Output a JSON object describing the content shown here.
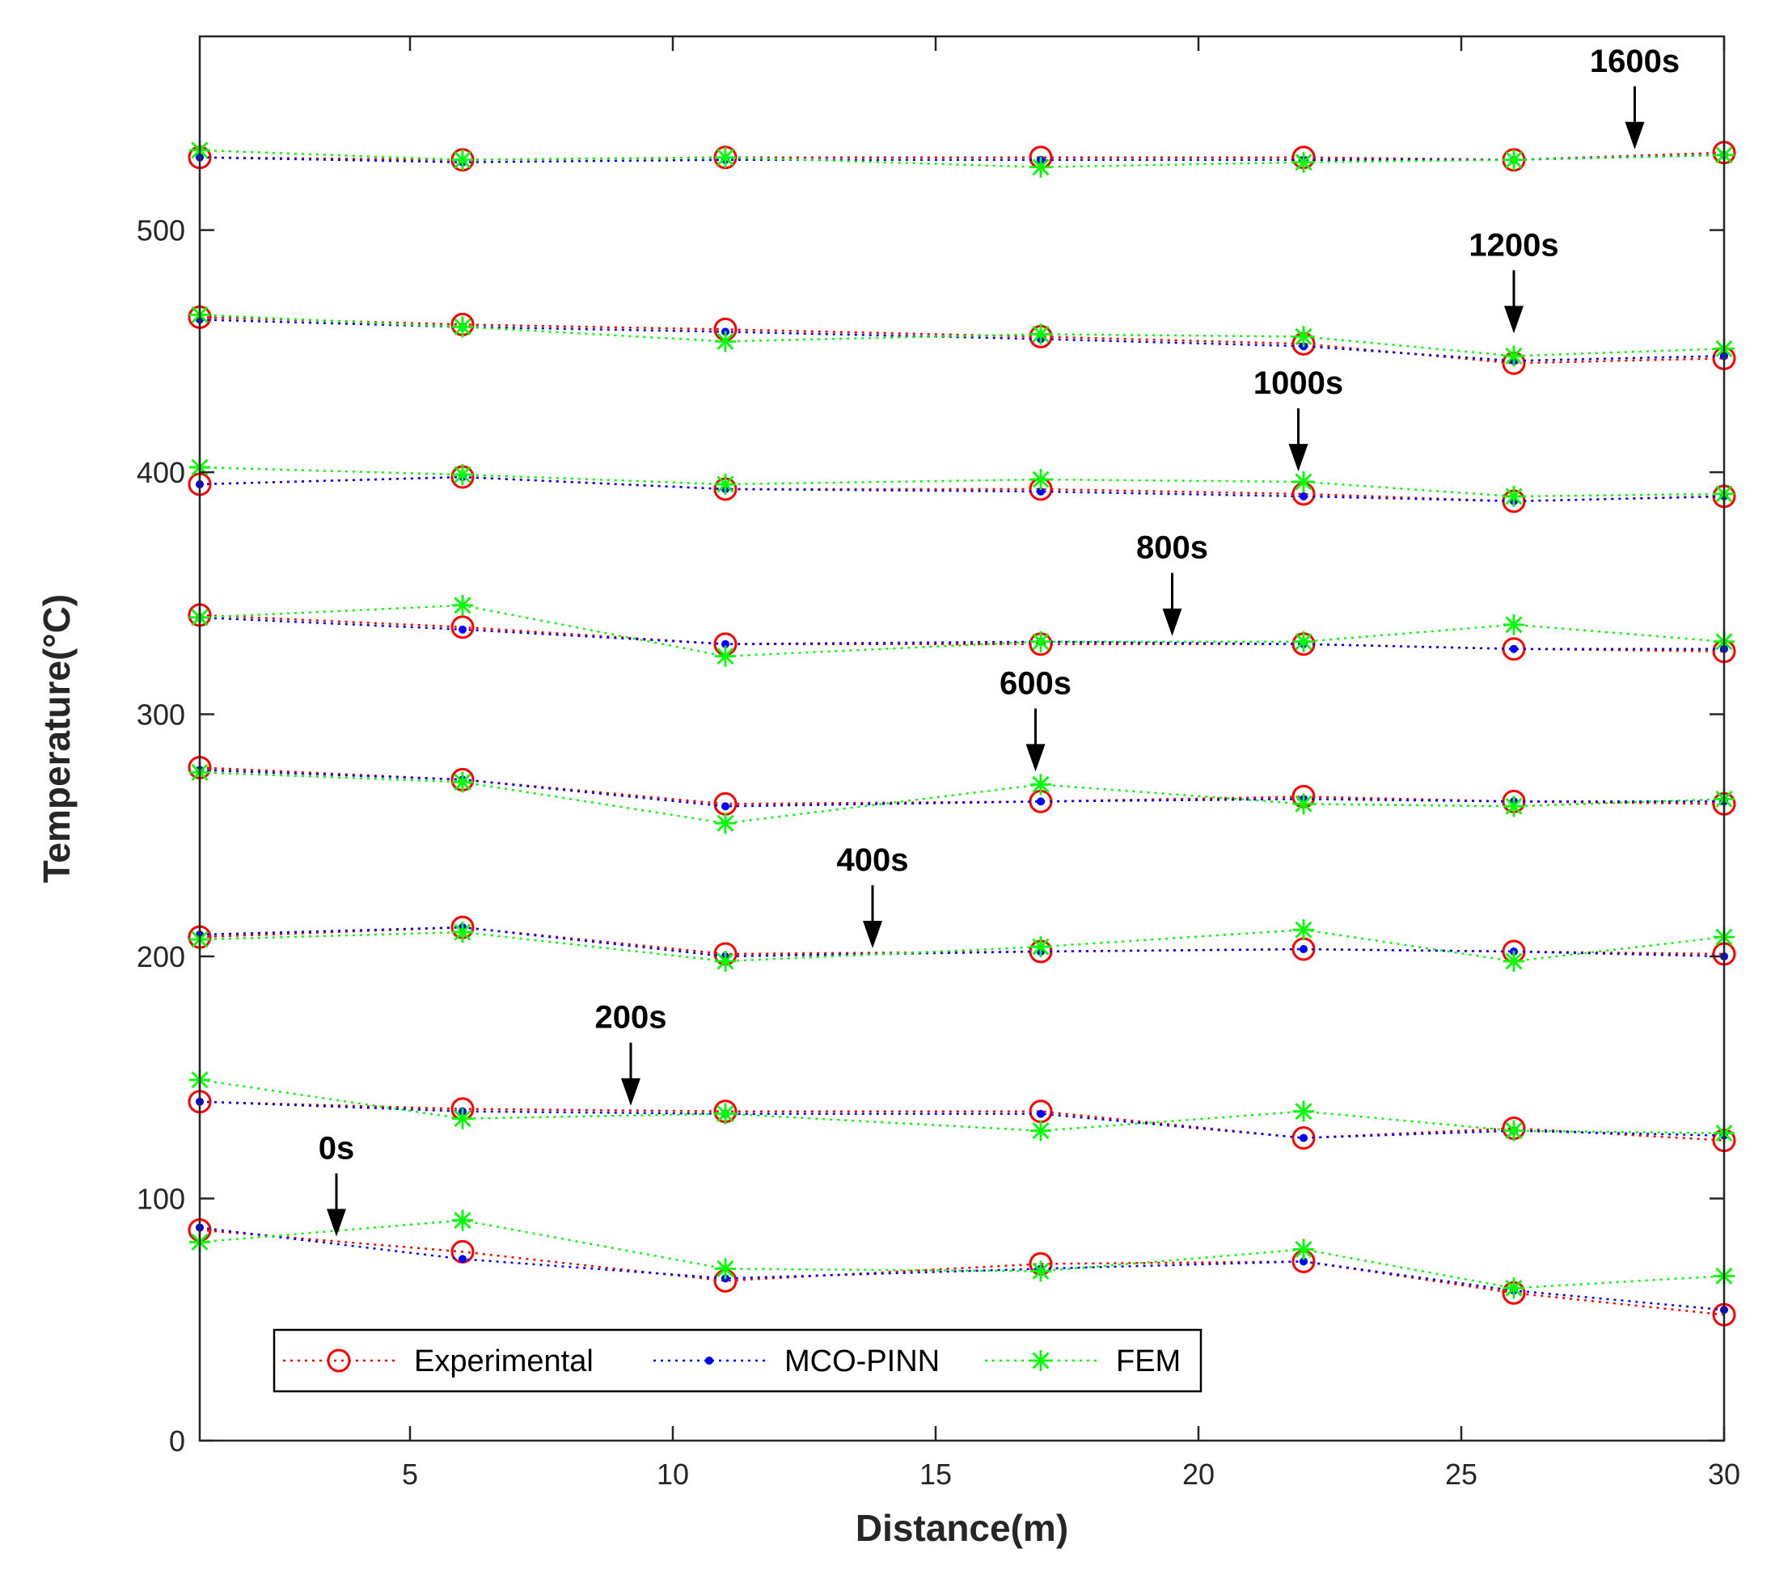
{
  "chart_data": {
    "type": "line",
    "title": "",
    "xlabel": "Distance(m)",
    "ylabel": "Temperature(°C)",
    "xlim": [
      1,
      30
    ],
    "ylim": [
      0,
      580
    ],
    "xticks": [
      5,
      10,
      15,
      20,
      25,
      30
    ],
    "yticks": [
      0,
      100,
      200,
      300,
      400,
      500
    ],
    "grid": false,
    "legend_position": "bottom-left",
    "x": [
      1,
      6,
      11,
      17,
      22,
      26,
      30
    ],
    "methods": [
      {
        "name": "Experimental",
        "color": "#ff0000",
        "marker": "circle"
      },
      {
        "name": "MCO-PINN",
        "color": "#0000ff",
        "marker": "dot"
      },
      {
        "name": "FEM",
        "color": "#00ff00",
        "marker": "asterisk"
      }
    ],
    "time_steps": [
      {
        "label": "0s",
        "Experimental": [
          87,
          78,
          66,
          73,
          74,
          61,
          52
        ],
        "MCO-PINN": [
          88,
          75,
          67,
          71,
          74,
          62,
          54
        ],
        "FEM": [
          82,
          91,
          71,
          70,
          79,
          63,
          68
        ]
      },
      {
        "label": "200s",
        "Experimental": [
          140,
          137,
          136,
          136,
          125,
          129,
          124
        ],
        "MCO-PINN": [
          140,
          136,
          135,
          135,
          125,
          128,
          126
        ],
        "FEM": [
          149,
          133,
          135,
          128,
          136,
          128,
          127
        ]
      },
      {
        "label": "400s",
        "Experimental": [
          208,
          212,
          201,
          202,
          203,
          202,
          201
        ],
        "MCO-PINN": [
          209,
          212,
          200,
          202,
          203,
          202,
          200
        ],
        "FEM": [
          207,
          210,
          198,
          204,
          211,
          198,
          208
        ]
      },
      {
        "label": "600s",
        "Experimental": [
          278,
          273,
          263,
          264,
          266,
          264,
          263
        ],
        "MCO-PINN": [
          277,
          273,
          262,
          264,
          265,
          264,
          264
        ],
        "FEM": [
          276,
          272,
          255,
          271,
          263,
          262,
          265
        ]
      },
      {
        "label": "800s",
        "Experimental": [
          341,
          336,
          329,
          329,
          329,
          327,
          326
        ],
        "MCO-PINN": [
          340,
          335,
          329,
          330,
          329,
          327,
          327
        ],
        "FEM": [
          340,
          345,
          324,
          330,
          330,
          337,
          330
        ]
      },
      {
        "label": "1000s",
        "Experimental": [
          395,
          398,
          393,
          393,
          391,
          388,
          390
        ],
        "MCO-PINN": [
          395,
          398,
          393,
          392,
          390,
          388,
          390
        ],
        "FEM": [
          402,
          399,
          395,
          397,
          396,
          390,
          391
        ]
      },
      {
        "label": "1200s",
        "Experimental": [
          464,
          461,
          459,
          456,
          453,
          445,
          447
        ],
        "MCO-PINN": [
          463,
          460,
          458,
          455,
          452,
          446,
          448
        ],
        "FEM": [
          465,
          460,
          454,
          457,
          456,
          448,
          451
        ]
      },
      {
        "label": "1600s",
        "Experimental": [
          530,
          529,
          530,
          530,
          530,
          529,
          532
        ],
        "MCO-PINN": [
          530,
          528,
          529,
          529,
          529,
          529,
          531
        ],
        "FEM": [
          533,
          529,
          530,
          526,
          528,
          529,
          531
        ]
      }
    ],
    "annotations": [
      {
        "text": "0s",
        "x": 3.6,
        "y": 83
      },
      {
        "text": "200s",
        "x": 9.2,
        "y": 137
      },
      {
        "text": "400s",
        "x": 13.8,
        "y": 202
      },
      {
        "text": "600s",
        "x": 16.9,
        "y": 275
      },
      {
        "text": "800s",
        "x": 19.5,
        "y": 331
      },
      {
        "text": "1000s",
        "x": 21.9,
        "y": 399
      },
      {
        "text": "1200s",
        "x": 26.0,
        "y": 456
      },
      {
        "text": "1600s",
        "x": 28.3,
        "y": 532
      }
    ]
  }
}
